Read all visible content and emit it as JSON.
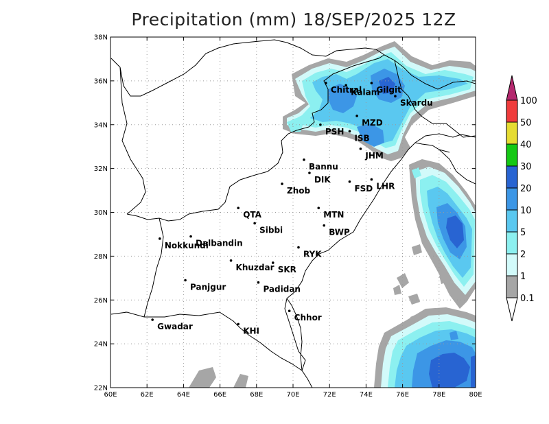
{
  "title": "Precipitation (mm) 18/SEP/2025 12Z",
  "map": {
    "lon_range": [
      60,
      80
    ],
    "lat_range": [
      22,
      38
    ],
    "x_ticks": [
      "60E",
      "62E",
      "64E",
      "66E",
      "68E",
      "70E",
      "72E",
      "74E",
      "76E",
      "78E",
      "80E"
    ],
    "y_ticks": [
      "22N",
      "24N",
      "26N",
      "28N",
      "30N",
      "32N",
      "34N",
      "36N",
      "38N"
    ],
    "grid": "dotted",
    "cities": [
      {
        "name": "Chitral",
        "lon": 71.8,
        "lat": 35.9
      },
      {
        "name": "Kalam",
        "lon": 72.9,
        "lat": 35.8
      },
      {
        "name": "Gilgit",
        "lon": 74.3,
        "lat": 35.9
      },
      {
        "name": "Skardu",
        "lon": 75.6,
        "lat": 35.3
      },
      {
        "name": "MZD",
        "lon": 73.5,
        "lat": 34.4
      },
      {
        "name": "PSH",
        "lon": 71.5,
        "lat": 34.0
      },
      {
        "name": "ISB",
        "lon": 73.1,
        "lat": 33.7
      },
      {
        "name": "JHM",
        "lon": 73.7,
        "lat": 32.9
      },
      {
        "name": "Bannu",
        "lon": 70.6,
        "lat": 32.4
      },
      {
        "name": "DIK",
        "lon": 70.9,
        "lat": 31.8
      },
      {
        "name": "FSD",
        "lon": 73.1,
        "lat": 31.4
      },
      {
        "name": "LHR",
        "lon": 74.3,
        "lat": 31.5
      },
      {
        "name": "Zhob",
        "lon": 69.4,
        "lat": 31.3
      },
      {
        "name": "QTA",
        "lon": 67.0,
        "lat": 30.2
      },
      {
        "name": "MTN",
        "lon": 71.4,
        "lat": 30.2
      },
      {
        "name": "Sibbi",
        "lon": 67.9,
        "lat": 29.5
      },
      {
        "name": "BWP",
        "lon": 71.7,
        "lat": 29.4
      },
      {
        "name": "Dalbandin",
        "lon": 64.4,
        "lat": 28.9
      },
      {
        "name": "Nokkundi",
        "lon": 62.7,
        "lat": 28.8
      },
      {
        "name": "RYK",
        "lon": 70.3,
        "lat": 28.4
      },
      {
        "name": "Khuzdar",
        "lon": 66.6,
        "lat": 27.8
      },
      {
        "name": "SKR",
        "lon": 68.9,
        "lat": 27.7
      },
      {
        "name": "Panjgur",
        "lon": 64.1,
        "lat": 26.9
      },
      {
        "name": "Padidan",
        "lon": 68.1,
        "lat": 26.8
      },
      {
        "name": "Chhor",
        "lon": 69.8,
        "lat": 25.5
      },
      {
        "name": "Gwadar",
        "lon": 62.3,
        "lat": 25.1
      },
      {
        "name": "KHI",
        "lon": 67.0,
        "lat": 24.9
      }
    ]
  },
  "colorbar": {
    "levels": [
      "0.1",
      "1",
      "2",
      "5",
      "10",
      "20",
      "30",
      "40",
      "50",
      "100"
    ],
    "colors": [
      "#a6a6a6",
      "#d2fafa",
      "#8cf0f0",
      "#5ac8f0",
      "#3c96e6",
      "#2864d2",
      "#14c814",
      "#e6dc32",
      "#f03c3c",
      "#b4286e"
    ]
  }
}
